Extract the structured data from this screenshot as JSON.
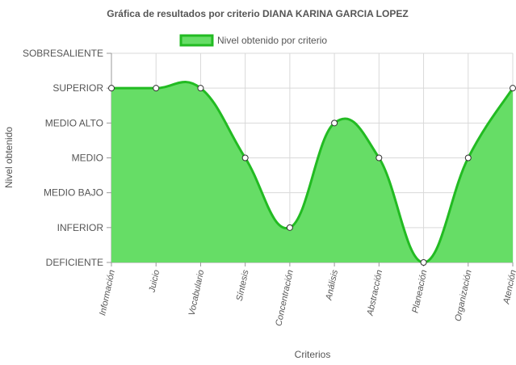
{
  "chart_data": {
    "type": "area",
    "title": "Gráfica de resultados por criterio DIANA KARINA GARCIA LOPEZ",
    "xlabel": "Criterios",
    "ylabel": "Nivel obtenido",
    "y_levels": [
      "DEFICIENTE",
      "INFERIOR",
      "MEDIO BAJO",
      "MEDIO",
      "MEDIO ALTO",
      "SUPERIOR",
      "SOBRESALIENTE"
    ],
    "categories": [
      "Información",
      "Juicio",
      "Vocabulario",
      "Síntesis",
      "Concentración",
      "Análisis",
      "Abstracción",
      "Planeación",
      "Organización",
      "Atención"
    ],
    "series": [
      {
        "name": "Nivel obtenido por criterio",
        "values": [
          5,
          5,
          5,
          3,
          1,
          4,
          3,
          0,
          3,
          5
        ]
      }
    ],
    "ylim": [
      0,
      6
    ],
    "grid": true,
    "legend_position": "top",
    "colors": {
      "fill": "#66dd66",
      "line": "#22bb22",
      "grid": "#d9d9d9",
      "axis": "#999999"
    }
  }
}
